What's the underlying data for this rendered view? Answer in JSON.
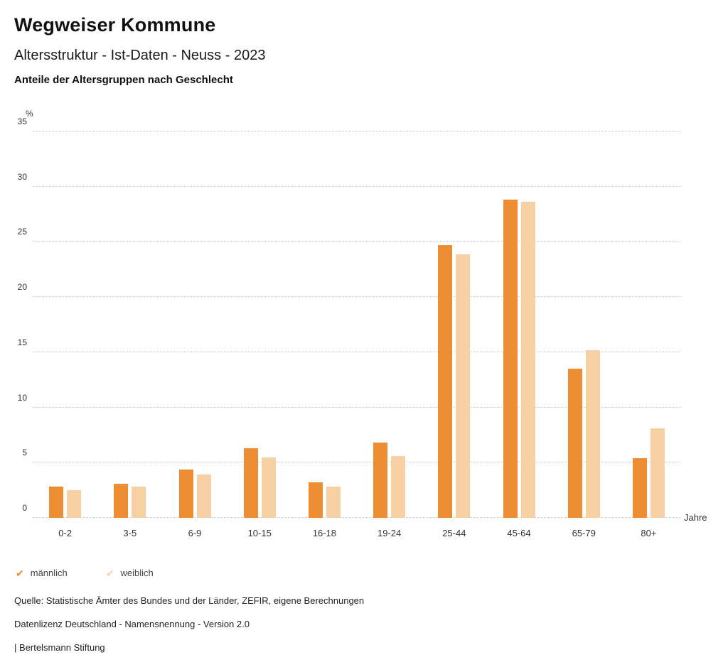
{
  "header": {
    "title": "Wegweiser Kommune",
    "subtitle": "Altersstruktur - Ist-Daten - Neuss - 2023",
    "section_title": "Anteile der Altersgruppen nach Geschlecht"
  },
  "chart_data": {
    "type": "bar",
    "categories": [
      "0-2",
      "3-5",
      "6-9",
      "10-15",
      "16-18",
      "19-24",
      "25-44",
      "45-64",
      "65-79",
      "80+"
    ],
    "series": [
      {
        "name": "männlich",
        "color": "#ED8D33",
        "values": [
          2.8,
          3.1,
          4.4,
          6.3,
          3.2,
          6.8,
          24.7,
          28.8,
          13.5,
          5.4
        ]
      },
      {
        "name": "weiblich",
        "color": "#F7D0A3",
        "values": [
          2.5,
          2.8,
          3.9,
          5.5,
          2.8,
          5.6,
          23.9,
          28.6,
          15.2,
          8.1
        ]
      }
    ],
    "ylabel": "%",
    "xlabel": "Jahre",
    "ylim": [
      0,
      35
    ],
    "yticks": [
      0,
      5,
      10,
      15,
      20,
      25,
      30,
      35
    ],
    "grid": true,
    "legend_position": "bottom",
    "legend_check_glyph": "✔"
  },
  "footer": {
    "source": "Quelle: Statistische Ämter des Bundes und der Länder, ZEFIR, eigene Berechnungen",
    "license": "Datenlizenz Deutschland - Namensnennung - Version 2.0",
    "attribution": "| Bertelsmann Stiftung"
  }
}
